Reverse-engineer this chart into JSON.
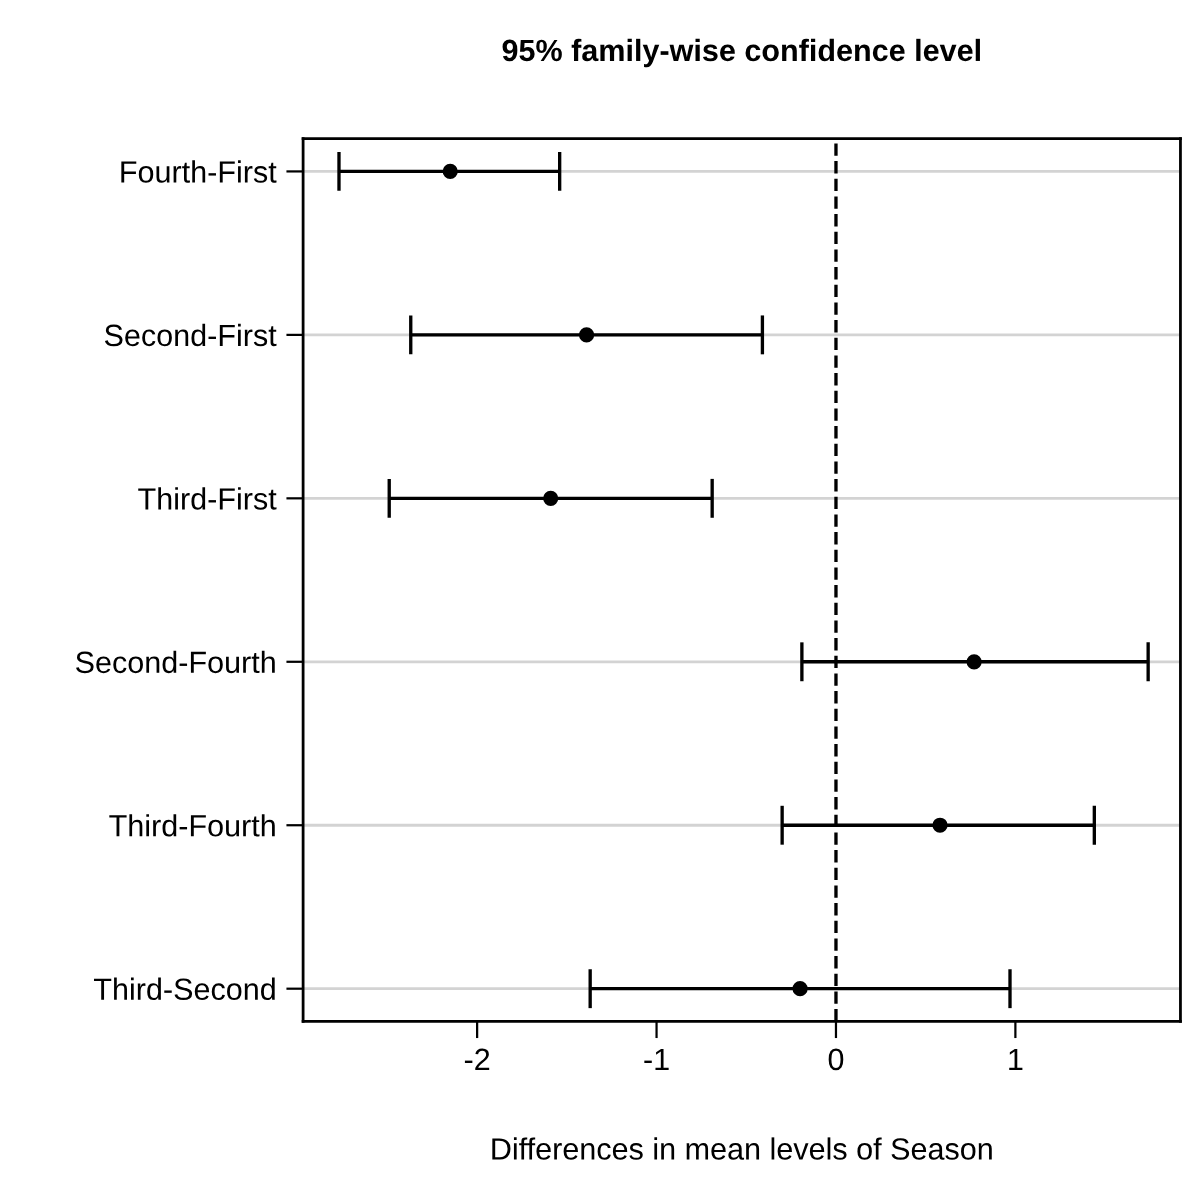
{
  "chart_data": {
    "type": "scatter",
    "title": "95% family-wise confidence level",
    "xlabel": "Differences in mean levels of Season",
    "orientation": "horizontal",
    "categories": [
      "Fourth-First",
      "Second-First",
      "Third-First",
      "Second-Fourth",
      "Third-Fourth",
      "Third-Second"
    ],
    "values": [
      -2.15,
      -1.39,
      -1.59,
      0.77,
      0.58,
      -0.2
    ],
    "errors": [
      [
        -2.77,
        -1.54
      ],
      [
        -2.37,
        -0.41
      ],
      [
        -2.49,
        -0.69
      ],
      [
        -0.19,
        1.74
      ],
      [
        -0.3,
        1.44
      ],
      [
        -1.37,
        0.97
      ]
    ],
    "color": "#000000",
    "xlim": [
      -2.97,
      1.92
    ],
    "xticks": [
      -2,
      -1,
      0,
      1
    ],
    "grid": "y",
    "ref_lines": [
      {
        "axis": "x",
        "value": 0,
        "line_style": "dashed",
        "color": "#000000"
      }
    ]
  }
}
